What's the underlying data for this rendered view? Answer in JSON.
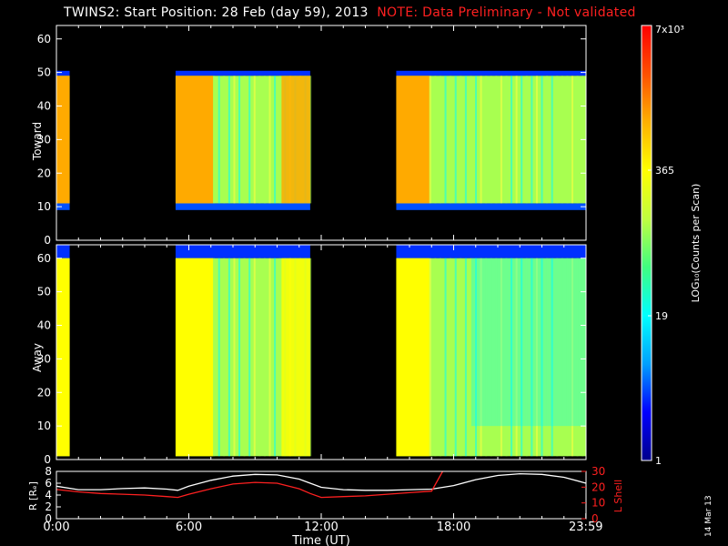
{
  "title": {
    "main": "TWINS2: Start Position: 28 Feb (day  59), 2013",
    "note": "NOTE: Data Preliminary - Not validated"
  },
  "date_stamp": "14 Mar 13",
  "colorbar": {
    "label": "LOG₁₀(Counts per Scan)",
    "ticks": [
      "7x10³",
      "365",
      "19",
      "1"
    ],
    "stops": [
      "#00008b",
      "#0000ff",
      "#00a0ff",
      "#00ffff",
      "#40ff80",
      "#c0ff40",
      "#ffff00",
      "#ffb000",
      "#ff5000",
      "#ff0000"
    ]
  },
  "colors": {
    "frame": "#ffffff",
    "lshell": "#ff2020",
    "radius": "#ffffff",
    "background": "#000000"
  },
  "chart_data": [
    {
      "type": "heatmap",
      "panel": "Toward",
      "ylabel": "Toward",
      "ylim": [
        0,
        64
      ],
      "yticks": [
        "0",
        "10",
        "20",
        "30",
        "40",
        "50",
        "60"
      ],
      "xlim": [
        0,
        24
      ],
      "data_intervals_hours": [
        [
          0.0,
          0.6
        ],
        [
          5.4,
          11.5
        ],
        [
          15.4,
          23.99
        ]
      ],
      "angle_range_deg": {
        "lower": 11,
        "upper": 49
      },
      "intensity_levels": {
        "high": "#ffaa00",
        "mid": "#a8ff50",
        "low": "#00ffff"
      }
    },
    {
      "type": "heatmap",
      "panel": "Away",
      "ylabel": "Away",
      "ylim": [
        0,
        64
      ],
      "yticks": [
        "0",
        "10",
        "20",
        "30",
        "40",
        "50",
        "60"
      ],
      "xlim": [
        0,
        24
      ],
      "data_intervals_hours": [
        [
          0.0,
          0.6
        ],
        [
          5.4,
          11.5
        ],
        [
          15.4,
          23.99
        ]
      ],
      "angle_range_deg": {
        "lower": 1,
        "upper": 60
      },
      "intensity_levels": {
        "high": "#ffff00",
        "mid": "#a8ff50",
        "low": "#00ffff"
      }
    },
    {
      "type": "line",
      "panel": "Orbit",
      "ylabel_left": "R [Rₑ]",
      "ylabel_right": "L Shell",
      "ylim_left": [
        0,
        8
      ],
      "yticks_left": [
        "0",
        "2",
        "4",
        "6",
        "8"
      ],
      "ylim_right": [
        0,
        30
      ],
      "yticks_right": [
        "0",
        "10",
        "20",
        "30"
      ],
      "xlabel": "Time (UT)",
      "xlim": [
        0,
        24
      ],
      "xticks": [
        "0:00",
        "6:00",
        "12:00",
        "18:00",
        "23:59"
      ],
      "series": [
        {
          "name": "R",
          "x": [
            0,
            1,
            2,
            3,
            4,
            5,
            5.5,
            6,
            7,
            8,
            9,
            10,
            11,
            11.5,
            12,
            13,
            14,
            15,
            16,
            17,
            18,
            19,
            20,
            21,
            22,
            23,
            24
          ],
          "y": [
            5.5,
            4.9,
            4.9,
            5.1,
            5.2,
            5.0,
            4.8,
            5.5,
            6.5,
            7.2,
            7.5,
            7.4,
            6.7,
            6.0,
            5.3,
            4.9,
            4.8,
            4.8,
            4.9,
            5.0,
            5.6,
            6.6,
            7.3,
            7.6,
            7.5,
            7.0,
            6.0
          ]
        },
        {
          "name": "L Shell",
          "x": [
            0,
            1,
            2,
            3,
            4,
            5,
            5.5,
            6,
            7,
            8,
            9,
            10,
            11,
            11.5,
            12,
            13,
            14,
            15,
            16,
            17,
            17.5
          ],
          "y": [
            18.5,
            17.0,
            16.0,
            15.5,
            15.0,
            14.0,
            13.5,
            15.5,
            19.0,
            22.0,
            23.0,
            22.5,
            19.0,
            16.0,
            13.5,
            14.0,
            14.5,
            15.5,
            16.5,
            17.5,
            30
          ]
        }
      ]
    }
  ]
}
